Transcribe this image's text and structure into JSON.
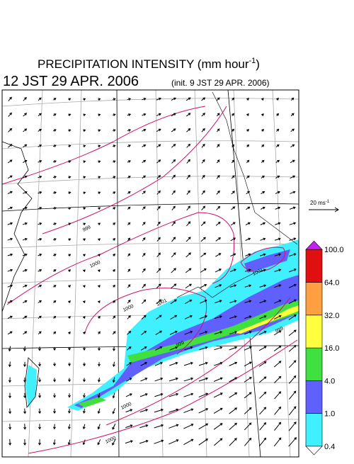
{
  "header": {
    "title": "PRECIPITATION INTENSITY (mm hour",
    "title_sup": "-1",
    "title_end": ")",
    "valid_time": "12 JST 29 APR. 2006",
    "init_time": "(init. 9 JST 29 APR. 2006)"
  },
  "vector_scale": {
    "label": "20 ms",
    "sup": "-1"
  },
  "colorbar": {
    "labels": [
      "0.4",
      "1.0",
      "4.0",
      "16.0",
      "32.0",
      "64.0",
      "100.0"
    ],
    "colors": [
      "#40f0ff",
      "#6060ff",
      "#40e040",
      "#ffff40",
      "#ffa040",
      "#e01010"
    ],
    "over_color": "#c020f0"
  },
  "isobar_labels": [
    "999",
    "1000",
    "1000",
    "1001",
    "1001",
    "999",
    "999",
    "1000",
    "1000"
  ]
}
